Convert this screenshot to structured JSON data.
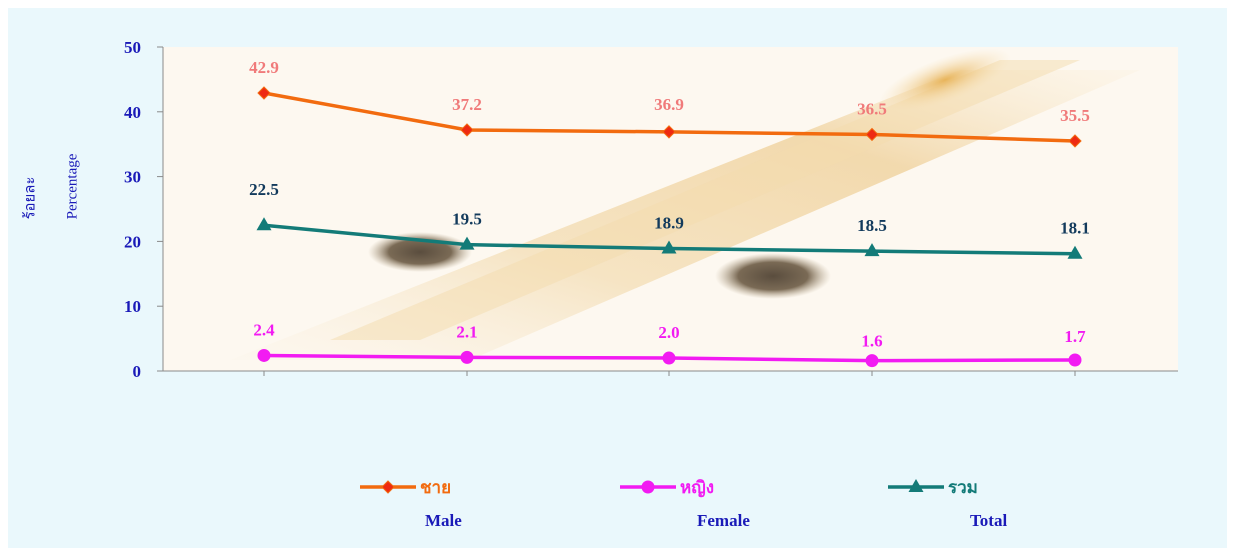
{
  "chart_data": {
    "type": "line",
    "categories": [
      "",
      "",
      "",
      "",
      ""
    ],
    "ylim": [
      0,
      50
    ],
    "yticks": [
      0,
      10,
      20,
      30,
      40,
      50
    ],
    "ylabel_th": "ร้อยละ",
    "ylabel_en": "Percentage",
    "grid": false,
    "legend_position": "bottom",
    "series": [
      {
        "name": "ชาย",
        "name_en": "Male",
        "color": "#f26b0f",
        "marker": "diamond",
        "label_color": "#f07a7a",
        "values": [
          42.9,
          37.2,
          36.9,
          36.5,
          35.5
        ],
        "labels": [
          "42.9",
          "37.2",
          "36.9",
          "36.5",
          "35.5"
        ]
      },
      {
        "name": "หญิง",
        "name_en": "Female",
        "color": "#f21bf2",
        "marker": "circle",
        "label_color": "#f21bf2",
        "values": [
          2.4,
          2.1,
          2.0,
          1.6,
          1.7
        ],
        "labels": [
          "2.4",
          "2.1",
          "2.0",
          "1.6",
          "1.7"
        ]
      },
      {
        "name": "รวม",
        "name_en": "Total",
        "color": "#137b78",
        "marker": "triangle",
        "label_color": "#123a5c",
        "values": [
          22.5,
          19.5,
          18.9,
          18.5,
          18.1
        ],
        "labels": [
          "22.5",
          "19.5",
          "18.9",
          "18.5",
          "18.1"
        ]
      }
    ]
  }
}
